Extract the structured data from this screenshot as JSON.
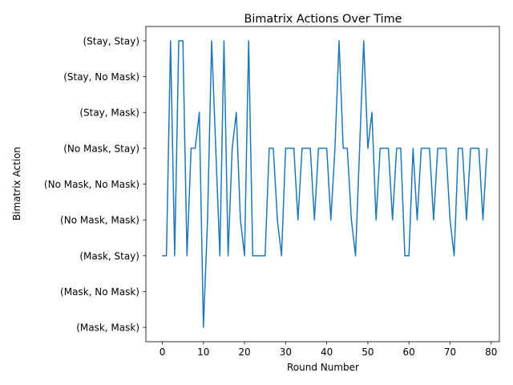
{
  "chart_data": {
    "type": "line",
    "title": "Bimatrix Actions Over Time",
    "xlabel": "Round Number",
    "ylabel": "Bimatrix Action",
    "xlim": [
      -4,
      82
    ],
    "ylim": [
      -0.4,
      8.4
    ],
    "x_ticks": [
      0,
      10,
      20,
      30,
      40,
      50,
      60,
      70,
      80
    ],
    "y_ticks": [
      "(Mask, Mask)",
      "(Mask, No Mask)",
      "(Mask, Stay)",
      "(No Mask, Mask)",
      "(No Mask, No Mask)",
      "(No Mask, Stay)",
      "(Stay, Mask)",
      "(Stay, No Mask)",
      "(Stay, Stay)"
    ],
    "grid": false,
    "legend": "none",
    "line_color": "#1f77b4",
    "series": [
      {
        "x": [
          0,
          1,
          2,
          3,
          4,
          5,
          6,
          7,
          8,
          9,
          10,
          11,
          12,
          13,
          14,
          15,
          16,
          17,
          18,
          19,
          20,
          21,
          22,
          23,
          24,
          25,
          26,
          27,
          28,
          29,
          30,
          31,
          32,
          33,
          34,
          35,
          36,
          37,
          38,
          39,
          40,
          41,
          42,
          43,
          44,
          45,
          46,
          47,
          48,
          49,
          50,
          51,
          52,
          53,
          54,
          55,
          56,
          57,
          58,
          59,
          60,
          61,
          62,
          63,
          64,
          65,
          66,
          67,
          68,
          69,
          70,
          71,
          72,
          73,
          74,
          75,
          76,
          77,
          78,
          79
        ],
        "values": [
          2,
          2,
          8,
          2,
          8,
          8,
          2,
          5,
          5,
          6,
          0,
          3,
          8,
          5,
          2,
          8,
          2,
          5,
          6,
          3,
          2,
          8,
          2,
          2,
          2,
          2,
          5,
          5,
          3,
          2,
          5,
          5,
          5,
          3,
          5,
          5,
          5,
          3,
          5,
          5,
          5,
          3,
          5,
          8,
          5,
          5,
          3,
          2,
          5,
          8,
          5,
          6,
          3,
          5,
          5,
          5,
          3,
          5,
          5,
          2,
          2,
          5,
          3,
          5,
          5,
          5,
          3,
          5,
          5,
          5,
          3,
          2,
          5,
          5,
          3,
          5,
          5,
          5,
          3,
          5
        ]
      }
    ]
  }
}
